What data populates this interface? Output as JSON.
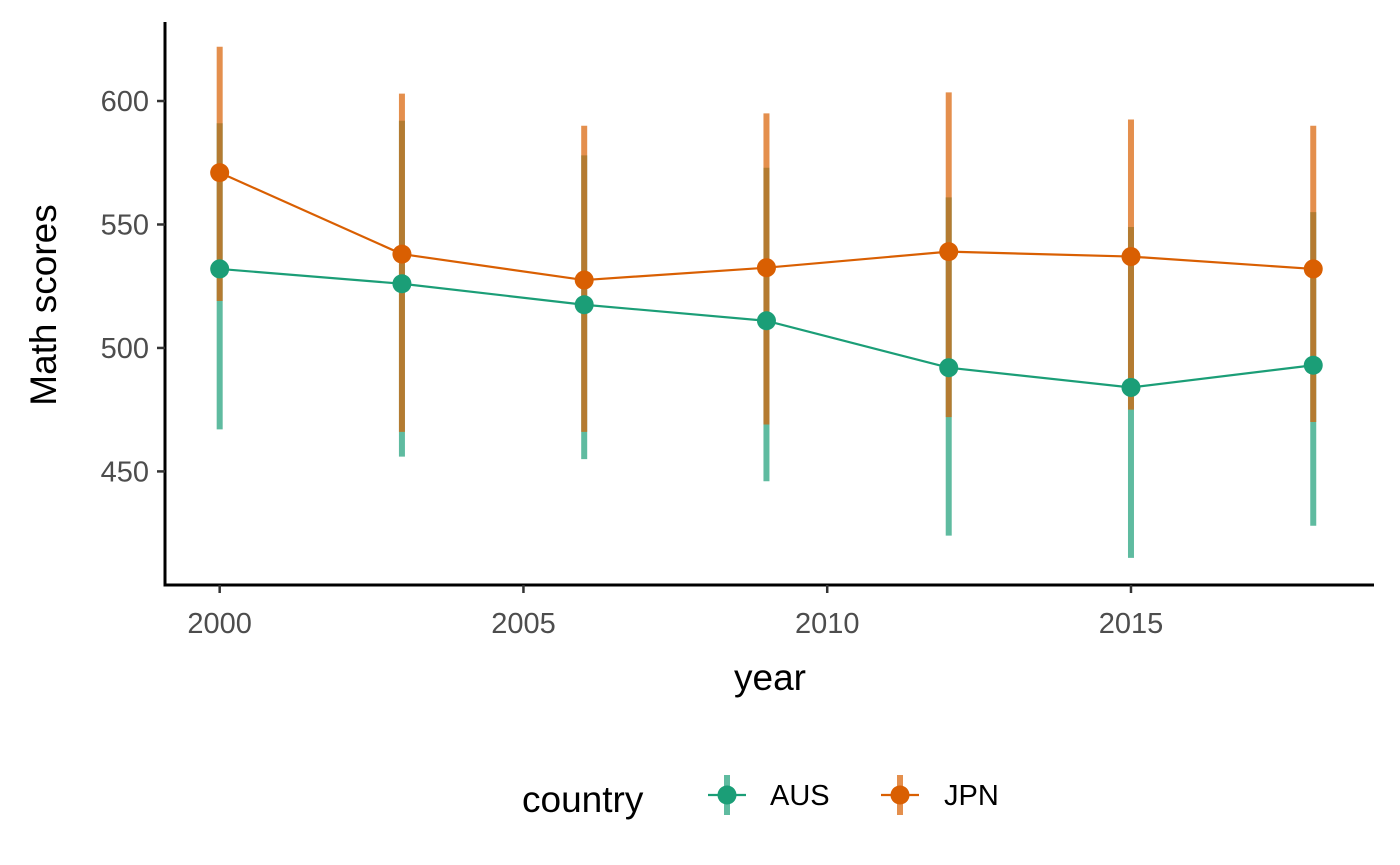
{
  "chart_data": {
    "type": "line",
    "xlabel": "year",
    "ylabel": "Math scores",
    "xlim": [
      1999.1,
      2019.0
    ],
    "ylim": [
      404,
      632
    ],
    "x_ticks": [
      2000,
      2005,
      2010,
      2015
    ],
    "y_ticks": [
      450,
      500,
      550,
      600
    ],
    "x_tick_labels": [
      "2000",
      "2005",
      "2010",
      "2015"
    ],
    "y_tick_labels": [
      "450",
      "500",
      "550",
      "600"
    ],
    "grid": false,
    "legend": {
      "title": "country",
      "position": "bottom"
    },
    "x": [
      2000,
      2003,
      2006,
      2009,
      2012,
      2015,
      2018
    ],
    "series": [
      {
        "name": "AUS",
        "color": "#1b9e77",
        "values": [
          532,
          526,
          517.5,
          511,
          492,
          484,
          493
        ],
        "lower": [
          467,
          456,
          455,
          446,
          424,
          415,
          428
        ],
        "upper": [
          591,
          592,
          578,
          573,
          561,
          549,
          555
        ]
      },
      {
        "name": "JPN",
        "color": "#d95f02",
        "values": [
          571,
          538,
          527.5,
          532.5,
          539,
          537,
          532
        ],
        "lower": [
          519,
          466,
          466,
          469,
          472,
          475,
          470
        ],
        "upper": [
          622,
          603,
          590,
          595,
          603.5,
          592.5,
          590
        ]
      }
    ]
  }
}
